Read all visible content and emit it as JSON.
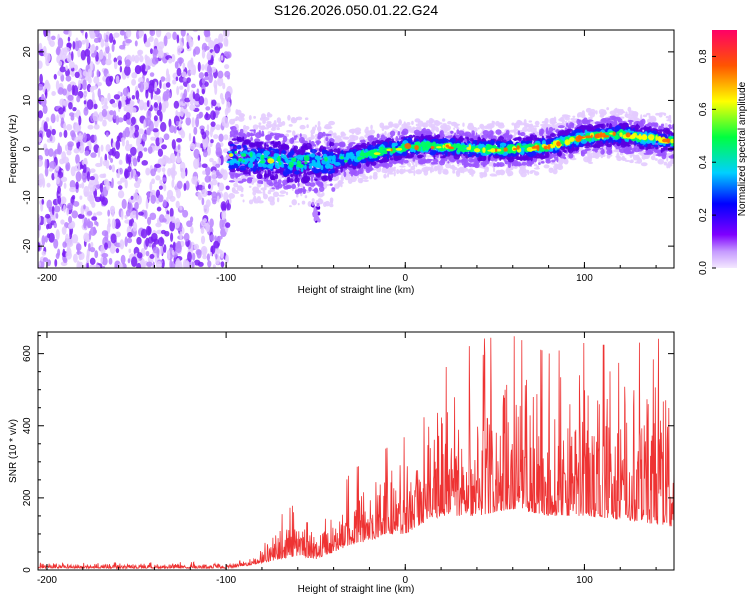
{
  "title": "S126.2026.050.01.22.G24",
  "chart_data": [
    {
      "type": "heatmap",
      "xlabel": "Height of straight line (km)",
      "ylabel": "Frequency (Hz)",
      "xlim": [
        -205,
        150
      ],
      "ylim": [
        -24.5,
        24.5
      ],
      "x_ticks": [
        -200,
        -100,
        0,
        100
      ],
      "y_ticks": [
        20,
        10,
        0,
        -10,
        -20
      ],
      "colorbar": {
        "label": "Normalized spectral amplitude",
        "range": [
          0,
          0.9
        ],
        "ticks": [
          0.0,
          0.2,
          0.4,
          0.6,
          0.8
        ]
      },
      "ridge": {
        "description_points_x": [
          -98,
          -80,
          -60,
          -40,
          -20,
          0,
          20,
          40,
          60,
          80,
          100,
          120,
          150
        ],
        "description_points_y": [
          -1.5,
          -2,
          -3,
          -2.5,
          -1,
          0.5,
          0.5,
          0,
          0,
          0.5,
          2.5,
          3,
          1.5
        ]
      }
    },
    {
      "type": "line",
      "xlabel": "Height of straight line (km)",
      "ylabel": "SNR (10 * v/v)",
      "xlim": [
        -205,
        150
      ],
      "ylim": [
        0,
        660
      ],
      "x_ticks": [
        -200,
        -100,
        0,
        100
      ],
      "y_ticks": [
        0,
        200,
        400,
        600
      ],
      "color": "#ee3333",
      "envelope": {
        "x": [
          -205,
          -100,
          -90,
          -80,
          -70,
          -60,
          -50,
          -40,
          -30,
          -20,
          -10,
          0,
          10,
          20,
          40,
          60,
          80,
          100,
          120,
          150
        ],
        "base": [
          5,
          5,
          10,
          20,
          30,
          40,
          30,
          50,
          70,
          80,
          100,
          100,
          130,
          150,
          150,
          170,
          150,
          150,
          140,
          120
        ],
        "peak": [
          20,
          22,
          30,
          70,
          150,
          190,
          130,
          170,
          280,
          300,
          340,
          370,
          430,
          550,
          640,
          650,
          600,
          630,
          620,
          650
        ]
      }
    }
  ]
}
